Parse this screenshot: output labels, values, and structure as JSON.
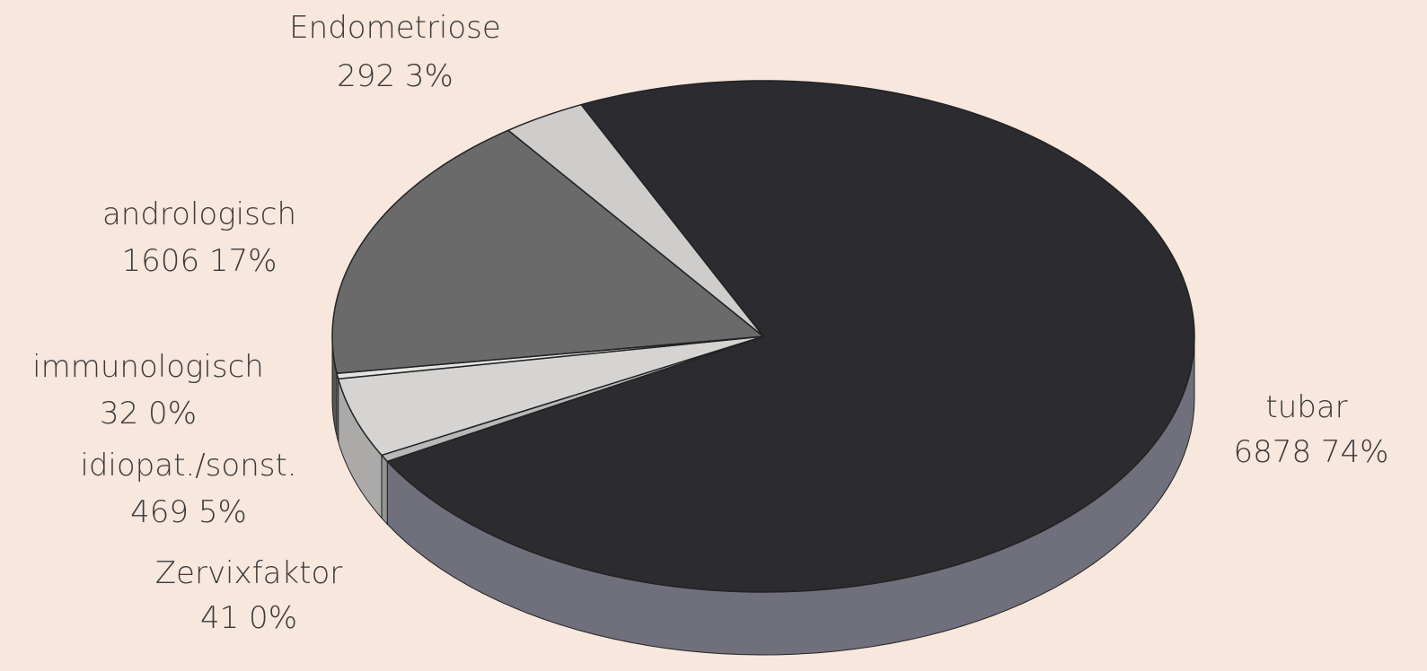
{
  "chart_data": {
    "type": "pie",
    "categories": [
      "tubar",
      "Zervixfaktor",
      "idiopat./sonst.",
      "immunologisch",
      "andrologisch",
      "Endometriose"
    ],
    "values": [
      6878,
      41,
      469,
      32,
      1606,
      292
    ],
    "value_labels": [
      "6878 74%",
      "41 0%",
      "469 5%",
      "32 0%",
      "1606 17%",
      "292 3%"
    ],
    "colors": [
      "#2b2b30",
      "#b8b8b8",
      "#d6d4d2",
      "#e6e4e2",
      "#6a6a6a",
      "#cfcdcb"
    ]
  }
}
